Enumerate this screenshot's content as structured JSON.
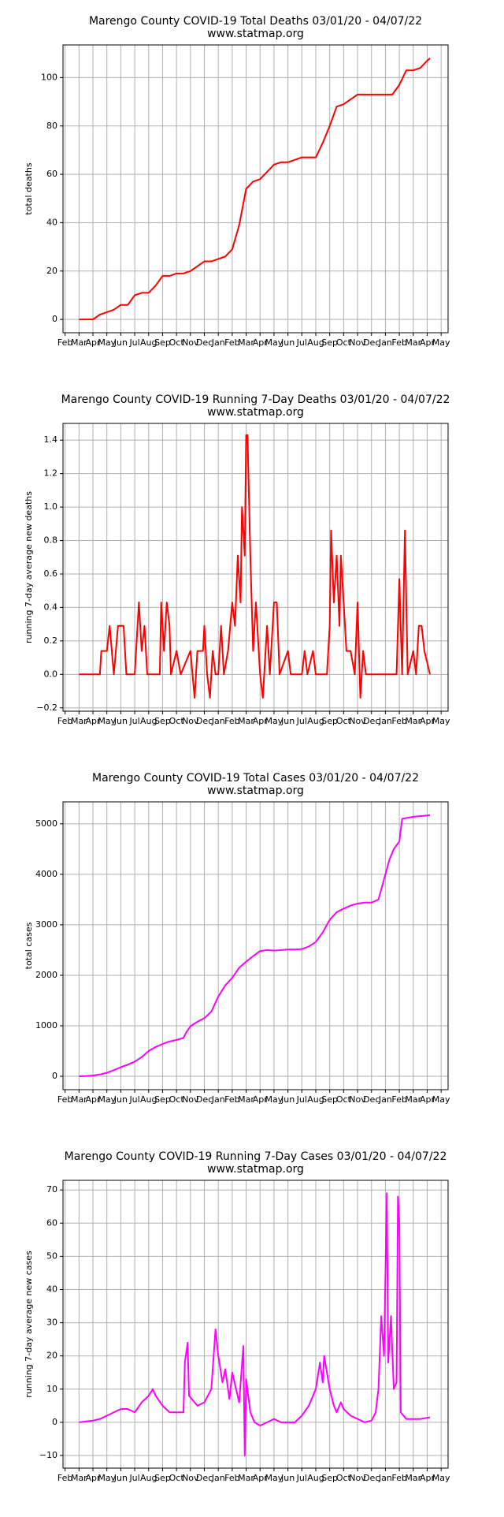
{
  "chart_data": [
    {
      "type": "line",
      "title": "Marengo County COVID-19 Total Deaths 03/01/20 - 04/07/22",
      "subtitle": "www.statmap.org",
      "ylabel": "total deaths",
      "grid": true,
      "xlim": [
        -0.15,
        27.5
      ],
      "ylim": [
        -5.5,
        113.5
      ],
      "yticks": [
        0,
        20,
        40,
        60,
        80,
        100
      ],
      "xticks": [
        {
          "value": 0,
          "label": "Feb"
        },
        {
          "value": 1,
          "label": "Mar"
        },
        {
          "value": 2,
          "label": "Apr"
        },
        {
          "value": 3,
          "label": "May"
        },
        {
          "value": 4,
          "label": "Jun"
        },
        {
          "value": 5,
          "label": "Jul"
        },
        {
          "value": 6,
          "label": "Aug"
        },
        {
          "value": 7,
          "label": "Sep"
        },
        {
          "value": 8,
          "label": "Oct"
        },
        {
          "value": 9,
          "label": "Nov"
        },
        {
          "value": 10,
          "label": "Dec"
        },
        {
          "value": 11,
          "label": "Jan"
        },
        {
          "value": 12,
          "label": "Feb"
        },
        {
          "value": 13,
          "label": "Mar"
        },
        {
          "value": 14,
          "label": "Apr"
        },
        {
          "value": 15,
          "label": "May"
        },
        {
          "value": 16,
          "label": "Jun"
        },
        {
          "value": 17,
          "label": "Jul"
        },
        {
          "value": 18,
          "label": "Aug"
        },
        {
          "value": 19,
          "label": "Sep"
        },
        {
          "value": 20,
          "label": "Oct"
        },
        {
          "value": 21,
          "label": "Nov"
        },
        {
          "value": 22,
          "label": "Dec"
        },
        {
          "value": 23,
          "label": "Jan"
        },
        {
          "value": 24,
          "label": "Feb"
        },
        {
          "value": 25,
          "label": "Mar"
        },
        {
          "value": 26,
          "label": "Apr"
        },
        {
          "value": 27,
          "label": "May"
        }
      ],
      "x": [
        1,
        1.5,
        2,
        2.5,
        3,
        3.5,
        4,
        4.5,
        5,
        5.5,
        6,
        6.5,
        7,
        7.5,
        8,
        8.5,
        9,
        9.5,
        10,
        10.5,
        11,
        11.5,
        12,
        12.5,
        13,
        13.5,
        14,
        14.5,
        15,
        15.5,
        16,
        16.5,
        17,
        17.5,
        18,
        18.5,
        19,
        19.5,
        20,
        20.5,
        21,
        21.5,
        22,
        22.5,
        23,
        23.5,
        24,
        24.5,
        25,
        25.5,
        26,
        26.2
      ],
      "series": [
        {
          "color": "#ff0000",
          "values": [
            0,
            0,
            0,
            2,
            3,
            4,
            6,
            6,
            10,
            11,
            11,
            14,
            18,
            18,
            19,
            19,
            20,
            22,
            24,
            24,
            25,
            26,
            29,
            39,
            54,
            57,
            58,
            61,
            64,
            65,
            65,
            66,
            67,
            67,
            67,
            73,
            80,
            88,
            89,
            91,
            93,
            93,
            93,
            93,
            93,
            93,
            97,
            103,
            103,
            104,
            107,
            108
          ]
        }
      ]
    },
    {
      "type": "line",
      "title": "Marengo County COVID-19 Running 7-Day Deaths 03/01/20 - 04/07/22",
      "subtitle": "www.statmap.org",
      "ylabel": "running 7-day average new deaths",
      "grid": true,
      "xlim": [
        -0.15,
        27.5
      ],
      "ylim": [
        -0.22,
        1.5
      ],
      "yticks": [
        {
          "value": -0.2,
          "label": "−0.2"
        },
        {
          "value": 0,
          "label": "0.0"
        },
        0.2,
        0.4,
        0.6,
        0.8,
        {
          "value": 1,
          "label": "1.0"
        },
        1.2,
        1.4
      ],
      "xticks": [
        {
          "value": 0,
          "label": "Feb"
        },
        {
          "value": 1,
          "label": "Mar"
        },
        {
          "value": 2,
          "label": "Apr"
        },
        {
          "value": 3,
          "label": "May"
        },
        {
          "value": 4,
          "label": "Jun"
        },
        {
          "value": 5,
          "label": "Jul"
        },
        {
          "value": 6,
          "label": "Aug"
        },
        {
          "value": 7,
          "label": "Sep"
        },
        {
          "value": 8,
          "label": "Oct"
        },
        {
          "value": 9,
          "label": "Nov"
        },
        {
          "value": 10,
          "label": "Dec"
        },
        {
          "value": 11,
          "label": "Jan"
        },
        {
          "value": 12,
          "label": "Feb"
        },
        {
          "value": 13,
          "label": "Mar"
        },
        {
          "value": 14,
          "label": "Apr"
        },
        {
          "value": 15,
          "label": "May"
        },
        {
          "value": 16,
          "label": "Jun"
        },
        {
          "value": 17,
          "label": "Jul"
        },
        {
          "value": 18,
          "label": "Aug"
        },
        {
          "value": 19,
          "label": "Sep"
        },
        {
          "value": 20,
          "label": "Oct"
        },
        {
          "value": 21,
          "label": "Nov"
        },
        {
          "value": 22,
          "label": "Dec"
        },
        {
          "value": 23,
          "label": "Jan"
        },
        {
          "value": 24,
          "label": "Feb"
        },
        {
          "value": 25,
          "label": "Mar"
        },
        {
          "value": 26,
          "label": "Apr"
        },
        {
          "value": 27,
          "label": "May"
        }
      ],
      "x": [
        1,
        2.5,
        2.6,
        3,
        3.2,
        3.5,
        3.8,
        4.2,
        4.4,
        5,
        5.3,
        5.5,
        5.7,
        5.9,
        6.8,
        6.9,
        7.1,
        7.3,
        7.5,
        7.6,
        8,
        8.3,
        9,
        9.3,
        9.5,
        9.9,
        10,
        10.2,
        10.4,
        10.6,
        10.8,
        11,
        11.2,
        11.4,
        11.7,
        12,
        12.2,
        12.4,
        12.6,
        12.7,
        12.9,
        13,
        13.1,
        13.3,
        13.5,
        13.7,
        13.8,
        14,
        14.2,
        14.5,
        14.7,
        15,
        15.2,
        15.4,
        16,
        16.2,
        17,
        17.2,
        17.4,
        17.8,
        18,
        18.8,
        19,
        19.1,
        19.3,
        19.5,
        19.7,
        19.8,
        20,
        20.2,
        20.5,
        20.8,
        21,
        21.2,
        21.4,
        21.6,
        23.8,
        24,
        24.2,
        24.4,
        24.6,
        25,
        25.2,
        25.4,
        25.6,
        25.8,
        26.2
      ],
      "series": [
        {
          "color": "#ff0000",
          "values": [
            0,
            0,
            0.14,
            0.14,
            0.29,
            0,
            0.29,
            0.29,
            0,
            0,
            0.43,
            0.14,
            0.29,
            0,
            0,
            0.43,
            0.14,
            0.43,
            0.29,
            0,
            0.14,
            0,
            0.14,
            -0.14,
            0.14,
            0.14,
            0.29,
            0,
            -0.14,
            0.14,
            0,
            0,
            0.29,
            0,
            0.14,
            0.43,
            0.29,
            0.71,
            0.43,
            1.0,
            0.71,
            1.43,
            1.43,
            0.71,
            0.14,
            0.43,
            0.29,
            0,
            -0.14,
            0.29,
            0,
            0.43,
            0.43,
            0,
            0.14,
            0,
            0,
            0.14,
            0,
            0.14,
            0,
            0,
            0.29,
            0.86,
            0.43,
            0.71,
            0.29,
            0.71,
            0.43,
            0.14,
            0.14,
            0,
            0.43,
            -0.14,
            0.14,
            0,
            0,
            0.57,
            0,
            0.86,
            0,
            0.14,
            0,
            0.29,
            0.29,
            0.14,
            0
          ]
        }
      ]
    },
    {
      "type": "line",
      "title": "Marengo County COVID-19 Total Cases 03/01/20 - 04/07/22",
      "subtitle": "www.statmap.org",
      "ylabel": "total cases",
      "grid": true,
      "xlim": [
        -0.15,
        27.5
      ],
      "ylim": [
        -265,
        5435
      ],
      "yticks": [
        0,
        1000,
        2000,
        3000,
        4000,
        5000
      ],
      "xticks": [
        {
          "value": 0,
          "label": "Feb"
        },
        {
          "value": 1,
          "label": "Mar"
        },
        {
          "value": 2,
          "label": "Apr"
        },
        {
          "value": 3,
          "label": "May"
        },
        {
          "value": 4,
          "label": "Jun"
        },
        {
          "value": 5,
          "label": "Jul"
        },
        {
          "value": 6,
          "label": "Aug"
        },
        {
          "value": 7,
          "label": "Sep"
        },
        {
          "value": 8,
          "label": "Oct"
        },
        {
          "value": 9,
          "label": "Nov"
        },
        {
          "value": 10,
          "label": "Dec"
        },
        {
          "value": 11,
          "label": "Jan"
        },
        {
          "value": 12,
          "label": "Feb"
        },
        {
          "value": 13,
          "label": "Mar"
        },
        {
          "value": 14,
          "label": "Apr"
        },
        {
          "value": 15,
          "label": "May"
        },
        {
          "value": 16,
          "label": "Jun"
        },
        {
          "value": 17,
          "label": "Jul"
        },
        {
          "value": 18,
          "label": "Aug"
        },
        {
          "value": 19,
          "label": "Sep"
        },
        {
          "value": 20,
          "label": "Oct"
        },
        {
          "value": 21,
          "label": "Nov"
        },
        {
          "value": 22,
          "label": "Dec"
        },
        {
          "value": 23,
          "label": "Jan"
        },
        {
          "value": 24,
          "label": "Feb"
        },
        {
          "value": 25,
          "label": "Mar"
        },
        {
          "value": 26,
          "label": "Apr"
        },
        {
          "value": 27,
          "label": "May"
        }
      ],
      "x": [
        1,
        1.5,
        2,
        2.5,
        3,
        3.5,
        4,
        4.5,
        5,
        5.5,
        6,
        6.5,
        7,
        7.5,
        8,
        8.5,
        8.7,
        9,
        9.5,
        10,
        10.5,
        11,
        11.5,
        12,
        12.5,
        13,
        13.5,
        14,
        14.5,
        15,
        15.5,
        16,
        16.5,
        17,
        17.5,
        18,
        18.5,
        19,
        19.5,
        20,
        20.5,
        21,
        21.5,
        22,
        22.5,
        23,
        23.3,
        23.6,
        24,
        24.2,
        25,
        26.2
      ],
      "series": [
        {
          "color": "#ff00ff",
          "values": [
            0,
            5,
            15,
            35,
            70,
            120,
            180,
            230,
            290,
            380,
            500,
            580,
            640,
            690,
            720,
            760,
            870,
            990,
            1080,
            1150,
            1280,
            1580,
            1800,
            1950,
            2150,
            2270,
            2380,
            2480,
            2500,
            2490,
            2500,
            2510,
            2510,
            2520,
            2570,
            2660,
            2850,
            3100,
            3250,
            3320,
            3380,
            3420,
            3440,
            3440,
            3500,
            4000,
            4300,
            4500,
            4650,
            5100,
            5140,
            5170
          ]
        }
      ]
    },
    {
      "type": "line",
      "title": "Marengo County COVID-19 Running 7-Day Cases 03/01/20 - 04/07/22",
      "subtitle": "www.statmap.org",
      "ylabel": "running 7-day average new cases",
      "grid": true,
      "xlim": [
        -0.15,
        27.5
      ],
      "ylim": [
        -13.8,
        72.9
      ],
      "yticks": [
        {
          "value": -10,
          "label": "−10"
        },
        0,
        10,
        20,
        30,
        40,
        50,
        60,
        70
      ],
      "xticks": [
        {
          "value": 0,
          "label": "Feb"
        },
        {
          "value": 1,
          "label": "Mar"
        },
        {
          "value": 2,
          "label": "Apr"
        },
        {
          "value": 3,
          "label": "May"
        },
        {
          "value": 4,
          "label": "Jun"
        },
        {
          "value": 5,
          "label": "Jul"
        },
        {
          "value": 6,
          "label": "Aug"
        },
        {
          "value": 7,
          "label": "Sep"
        },
        {
          "value": 8,
          "label": "Oct"
        },
        {
          "value": 9,
          "label": "Nov"
        },
        {
          "value": 10,
          "label": "Dec"
        },
        {
          "value": 11,
          "label": "Jan"
        },
        {
          "value": 12,
          "label": "Feb"
        },
        {
          "value": 13,
          "label": "Mar"
        },
        {
          "value": 14,
          "label": "Apr"
        },
        {
          "value": 15,
          "label": "May"
        },
        {
          "value": 16,
          "label": "Jun"
        },
        {
          "value": 17,
          "label": "Jul"
        },
        {
          "value": 18,
          "label": "Aug"
        },
        {
          "value": 19,
          "label": "Sep"
        },
        {
          "value": 20,
          "label": "Oct"
        },
        {
          "value": 21,
          "label": "Nov"
        },
        {
          "value": 22,
          "label": "Dec"
        },
        {
          "value": 23,
          "label": "Jan"
        },
        {
          "value": 24,
          "label": "Feb"
        },
        {
          "value": 25,
          "label": "Mar"
        },
        {
          "value": 26,
          "label": "Apr"
        },
        {
          "value": 27,
          "label": "May"
        }
      ],
      "x": [
        1,
        2,
        2.5,
        3,
        3.5,
        4,
        4.5,
        5,
        5.5,
        6,
        6.3,
        6.5,
        7,
        7.5,
        8,
        8.5,
        8.6,
        8.8,
        8.9,
        9.5,
        10,
        10.5,
        10.8,
        11,
        11.3,
        11.5,
        11.8,
        12,
        12.5,
        12.8,
        12.9,
        13,
        13.3,
        13.6,
        14,
        14.5,
        15,
        15.5,
        16,
        16.5,
        17,
        17.5,
        18,
        18.3,
        18.5,
        18.6,
        19,
        19.3,
        19.5,
        19.8,
        20,
        20.5,
        21,
        21.5,
        22,
        22.3,
        22.5,
        22.7,
        22.9,
        23,
        23.1,
        23.2,
        23.4,
        23.6,
        23.8,
        23.9,
        24,
        24.1,
        24.5,
        25,
        25.5,
        26.2
      ],
      "series": [
        {
          "color": "#ff00ff",
          "values": [
            0,
            0.5,
            1,
            2,
            3,
            4,
            4,
            3,
            6,
            8,
            10,
            8,
            5,
            3,
            3,
            3,
            18,
            24,
            8,
            5,
            6,
            10,
            28,
            20,
            12,
            16,
            7,
            15,
            6,
            23,
            -10,
            13,
            3,
            0,
            -1,
            0,
            1,
            0,
            0,
            0,
            2,
            5,
            10,
            18,
            12,
            20,
            10,
            5,
            3,
            6,
            4,
            2,
            1,
            0,
            0.5,
            3,
            10,
            32,
            20,
            44,
            69,
            18,
            32,
            10,
            12,
            68,
            60,
            3,
            1,
            1,
            1,
            1.5
          ]
        }
      ]
    }
  ]
}
